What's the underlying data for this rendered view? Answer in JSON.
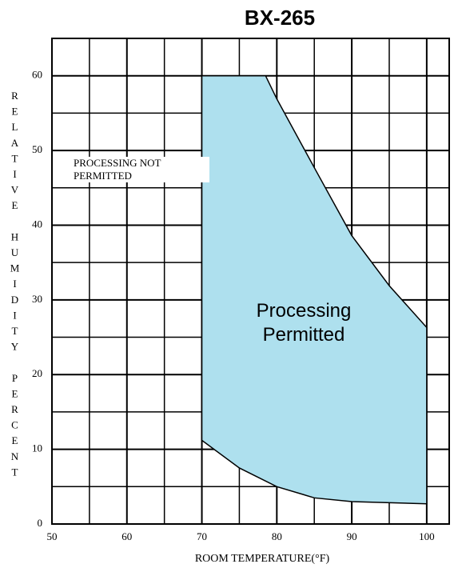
{
  "chart_data": {
    "type": "region",
    "title": "BX-265",
    "x_label": "ROOM TEMPERATURE(°F)",
    "y_label": "RELATIVE HUMIDITY PERCENT",
    "annotations": [
      "Processing Permitted",
      "PROCESSING NOT PERMITTED"
    ],
    "x": [
      70,
      78.5,
      80,
      85,
      90,
      95,
      100,
      100,
      90,
      85,
      80,
      75,
      70
    ],
    "values": [
      60,
      60,
      56.9,
      47.7,
      38.6,
      31.9,
      26.3,
      2.7,
      3.0,
      3.5,
      5,
      7.5,
      11.2
    ],
    "color": "#aee0ee",
    "xlim": [
      50,
      103
    ],
    "ylim": [
      0,
      65
    ],
    "xticks": [
      50,
      60,
      70,
      80,
      90,
      100
    ],
    "yticks": [
      0,
      10,
      20,
      30,
      40,
      50,
      60
    ],
    "xminor": [
      55,
      65,
      75,
      85,
      95
    ],
    "yminor": [
      5,
      15,
      25,
      35,
      45,
      55
    ],
    "grid": true
  }
}
